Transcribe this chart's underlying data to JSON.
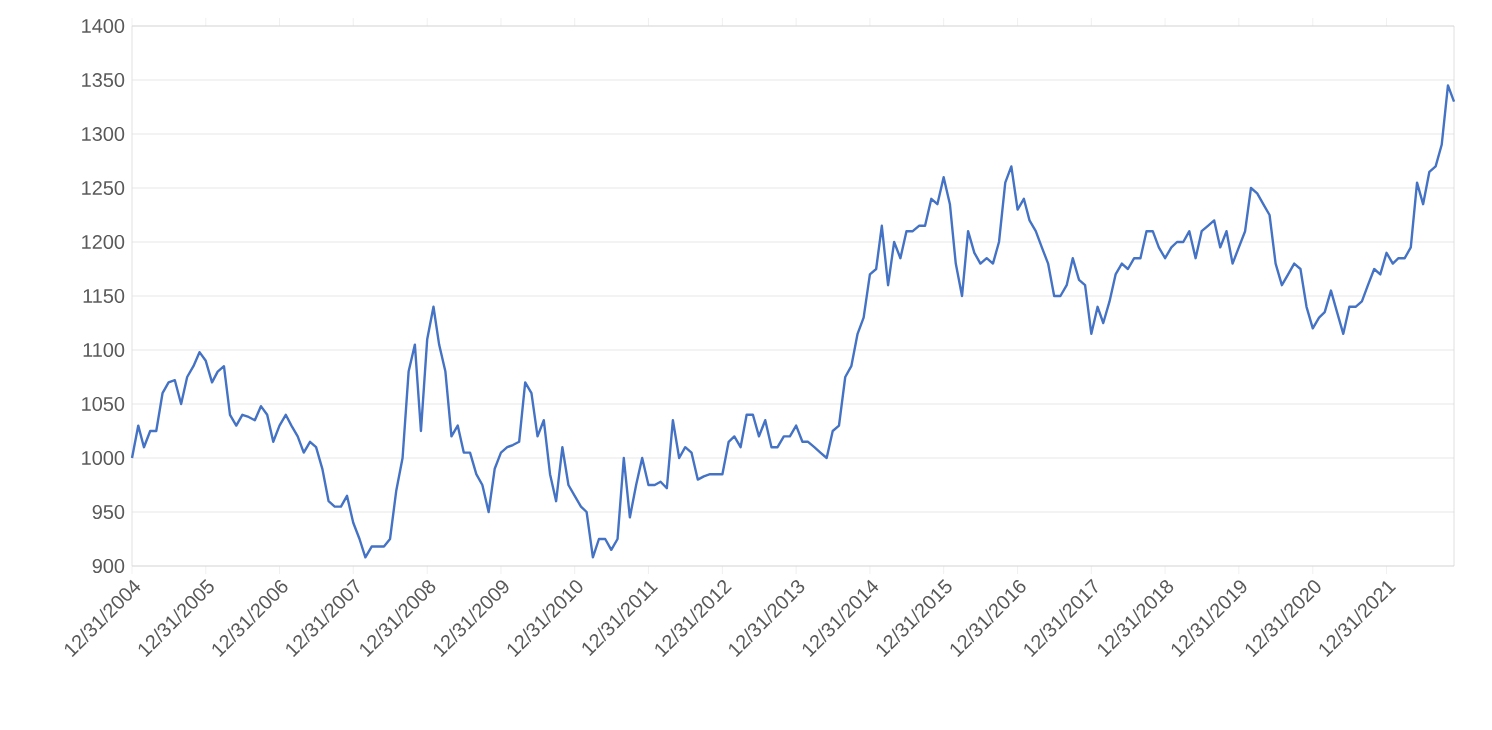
{
  "chart_data": {
    "type": "line",
    "color": "#4472c4",
    "marker": "none",
    "line_style": "solid",
    "grid": "y",
    "x": [
      "2004-12-31",
      "2005-01-31",
      "2005-02-28",
      "2005-03-31",
      "2005-04-30",
      "2005-05-31",
      "2005-06-30",
      "2005-07-31",
      "2005-08-31",
      "2005-09-30",
      "2005-10-31",
      "2005-11-30",
      "2005-12-31",
      "2006-01-31",
      "2006-02-28",
      "2006-03-31",
      "2006-04-30",
      "2006-05-31",
      "2006-06-30",
      "2006-07-31",
      "2006-08-31",
      "2006-09-30",
      "2006-10-31",
      "2006-11-30",
      "2006-12-31",
      "2007-01-31",
      "2007-02-28",
      "2007-03-31",
      "2007-04-30",
      "2007-05-31",
      "2007-06-30",
      "2007-07-31",
      "2007-08-31",
      "2007-09-30",
      "2007-10-31",
      "2007-11-30",
      "2007-12-31",
      "2008-01-31",
      "2008-02-29",
      "2008-03-31",
      "2008-04-30",
      "2008-05-31",
      "2008-06-30",
      "2008-07-31",
      "2008-08-31",
      "2008-09-30",
      "2008-10-31",
      "2008-11-30",
      "2008-12-31",
      "2009-01-31",
      "2009-02-28",
      "2009-03-31",
      "2009-04-30",
      "2009-05-31",
      "2009-06-30",
      "2009-07-31",
      "2009-08-31",
      "2009-09-30",
      "2009-10-31",
      "2009-11-30",
      "2009-12-31",
      "2010-01-31",
      "2010-02-28",
      "2010-03-31",
      "2010-04-30",
      "2010-05-31",
      "2010-06-30",
      "2010-07-31",
      "2010-08-31",
      "2010-09-30",
      "2010-10-31",
      "2010-11-30",
      "2010-12-31",
      "2011-01-31",
      "2011-02-28",
      "2011-03-31",
      "2011-04-30",
      "2011-05-31",
      "2011-06-30",
      "2011-07-31",
      "2011-08-31",
      "2011-09-30",
      "2011-10-31",
      "2011-11-30",
      "2011-12-31",
      "2012-01-31",
      "2012-02-29",
      "2012-03-31",
      "2012-04-30",
      "2012-05-31",
      "2012-06-30",
      "2012-07-31",
      "2012-08-31",
      "2012-09-30",
      "2012-10-31",
      "2012-11-30",
      "2012-12-31",
      "2013-01-31",
      "2013-02-28",
      "2013-03-31",
      "2013-04-30",
      "2013-05-31",
      "2013-06-30",
      "2013-07-31",
      "2013-08-31",
      "2013-09-30",
      "2013-10-31",
      "2013-11-30",
      "2013-12-31",
      "2014-01-31",
      "2014-02-28",
      "2014-03-31",
      "2014-04-30",
      "2014-05-31",
      "2014-06-30",
      "2014-07-31",
      "2014-08-31",
      "2014-09-30",
      "2014-10-31",
      "2014-11-30",
      "2014-12-31",
      "2015-01-31",
      "2015-02-28",
      "2015-03-31",
      "2015-04-30",
      "2015-05-31",
      "2015-06-30",
      "2015-07-31",
      "2015-08-31",
      "2015-09-30",
      "2015-10-31",
      "2015-11-30",
      "2015-12-31",
      "2016-01-31",
      "2016-02-29",
      "2016-03-31",
      "2016-04-30",
      "2016-05-31",
      "2016-06-30",
      "2016-07-31",
      "2016-08-31",
      "2016-09-30",
      "2016-10-31",
      "2016-11-30",
      "2016-12-31",
      "2017-01-31",
      "2017-02-28",
      "2017-03-31",
      "2017-04-30",
      "2017-05-31",
      "2017-06-30",
      "2017-07-31",
      "2017-08-31",
      "2017-09-30",
      "2017-10-31",
      "2017-11-30",
      "2017-12-31",
      "2018-01-31",
      "2018-02-28",
      "2018-03-31",
      "2018-04-30",
      "2018-05-31",
      "2018-06-30",
      "2018-07-31",
      "2018-08-31",
      "2018-09-30",
      "2018-10-31",
      "2018-11-30",
      "2018-12-31",
      "2019-01-31",
      "2019-02-28",
      "2019-03-31",
      "2019-04-30",
      "2019-05-31",
      "2019-06-30",
      "2019-07-31",
      "2019-08-31",
      "2019-09-30",
      "2019-10-31",
      "2019-11-30",
      "2019-12-31",
      "2020-01-31",
      "2020-02-29",
      "2020-03-31",
      "2020-04-30",
      "2020-05-31",
      "2020-06-30",
      "2020-07-31",
      "2020-08-31",
      "2020-09-30",
      "2020-10-31",
      "2020-11-30",
      "2020-12-31",
      "2021-01-31",
      "2021-02-28",
      "2021-03-31",
      "2021-04-30",
      "2021-05-31",
      "2021-06-30",
      "2021-07-31",
      "2021-08-31",
      "2021-09-30",
      "2021-10-31",
      "2021-11-30",
      "2021-12-31",
      "2022-01-31",
      "2022-02-28",
      "2022-03-31",
      "2022-04-30",
      "2022-05-31",
      "2022-06-30",
      "2022-07-31",
      "2022-08-31",
      "2022-09-30",
      "2022-10-31",
      "2022-11-30"
    ],
    "values": [
      1000,
      1030,
      1010,
      1025,
      1025,
      1060,
      1070,
      1072,
      1050,
      1075,
      1085,
      1098,
      1090,
      1070,
      1080,
      1085,
      1040,
      1030,
      1040,
      1038,
      1035,
      1048,
      1040,
      1015,
      1030,
      1040,
      1030,
      1020,
      1005,
      1015,
      1010,
      990,
      960,
      955,
      955,
      965,
      940,
      925,
      908,
      918,
      918,
      918,
      925,
      970,
      1000,
      1080,
      1105,
      1025,
      1110,
      1140,
      1105,
      1080,
      1020,
      1030,
      1005,
      1005,
      985,
      975,
      950,
      990,
      1005,
      1010,
      1012,
      1015,
      1070,
      1060,
      1020,
      1035,
      985,
      960,
      1010,
      975,
      965,
      955,
      950,
      908,
      925,
      925,
      915,
      925,
      1000,
      945,
      975,
      1000,
      975,
      975,
      978,
      972,
      1035,
      1000,
      1010,
      1005,
      980,
      983,
      985,
      985,
      985,
      1015,
      1020,
      1010,
      1040,
      1040,
      1020,
      1035,
      1010,
      1010,
      1020,
      1020,
      1030,
      1015,
      1015,
      1010,
      1005,
      1000,
      1025,
      1030,
      1075,
      1085,
      1115,
      1130,
      1170,
      1175,
      1215,
      1160,
      1200,
      1185,
      1210,
      1210,
      1215,
      1215,
      1240,
      1235,
      1260,
      1235,
      1180,
      1150,
      1210,
      1190,
      1180,
      1185,
      1180,
      1200,
      1255,
      1270,
      1230,
      1240,
      1220,
      1210,
      1195,
      1180,
      1150,
      1150,
      1160,
      1185,
      1165,
      1160,
      1115,
      1140,
      1125,
      1145,
      1170,
      1180,
      1175,
      1185,
      1185,
      1210,
      1210,
      1195,
      1185,
      1195,
      1200,
      1200,
      1210,
      1185,
      1210,
      1215,
      1220,
      1195,
      1210,
      1180,
      1195,
      1210,
      1250,
      1245,
      1235,
      1225,
      1180,
      1160,
      1170,
      1180,
      1175,
      1140,
      1120,
      1130,
      1135,
      1155,
      1135,
      1115,
      1140,
      1140,
      1145,
      1160,
      1175,
      1170,
      1190,
      1180,
      1185,
      1185,
      1195,
      1255,
      1235,
      1265,
      1270,
      1290,
      1345,
      1330
    ],
    "xlim": [
      "2004-12-31",
      "2022-11-30"
    ],
    "xticks": [
      {
        "value": "2004-12-31",
        "label": "12/31/2004"
      },
      {
        "value": "2005-12-31",
        "label": "12/31/2005"
      },
      {
        "value": "2006-12-31",
        "label": "12/31/2006"
      },
      {
        "value": "2007-12-31",
        "label": "12/31/2007"
      },
      {
        "value": "2008-12-31",
        "label": "12/31/2008"
      },
      {
        "value": "2009-12-31",
        "label": "12/31/2009"
      },
      {
        "value": "2010-12-31",
        "label": "12/31/2010"
      },
      {
        "value": "2011-12-31",
        "label": "12/31/2011"
      },
      {
        "value": "2012-12-31",
        "label": "12/31/2012"
      },
      {
        "value": "2013-12-31",
        "label": "12/31/2013"
      },
      {
        "value": "2014-12-31",
        "label": "12/31/2014"
      },
      {
        "value": "2015-12-31",
        "label": "12/31/2015"
      },
      {
        "value": "2016-12-31",
        "label": "12/31/2016"
      },
      {
        "value": "2017-12-31",
        "label": "12/31/2017"
      },
      {
        "value": "2018-12-31",
        "label": "12/31/2018"
      },
      {
        "value": "2019-12-31",
        "label": "12/31/2019"
      },
      {
        "value": "2020-12-31",
        "label": "12/31/2020"
      },
      {
        "value": "2021-12-31",
        "label": "12/31/2021"
      }
    ],
    "ylim": [
      900,
      1400
    ],
    "yticks": [
      900,
      950,
      1000,
      1050,
      1100,
      1150,
      1200,
      1250,
      1300,
      1350,
      1400
    ]
  }
}
